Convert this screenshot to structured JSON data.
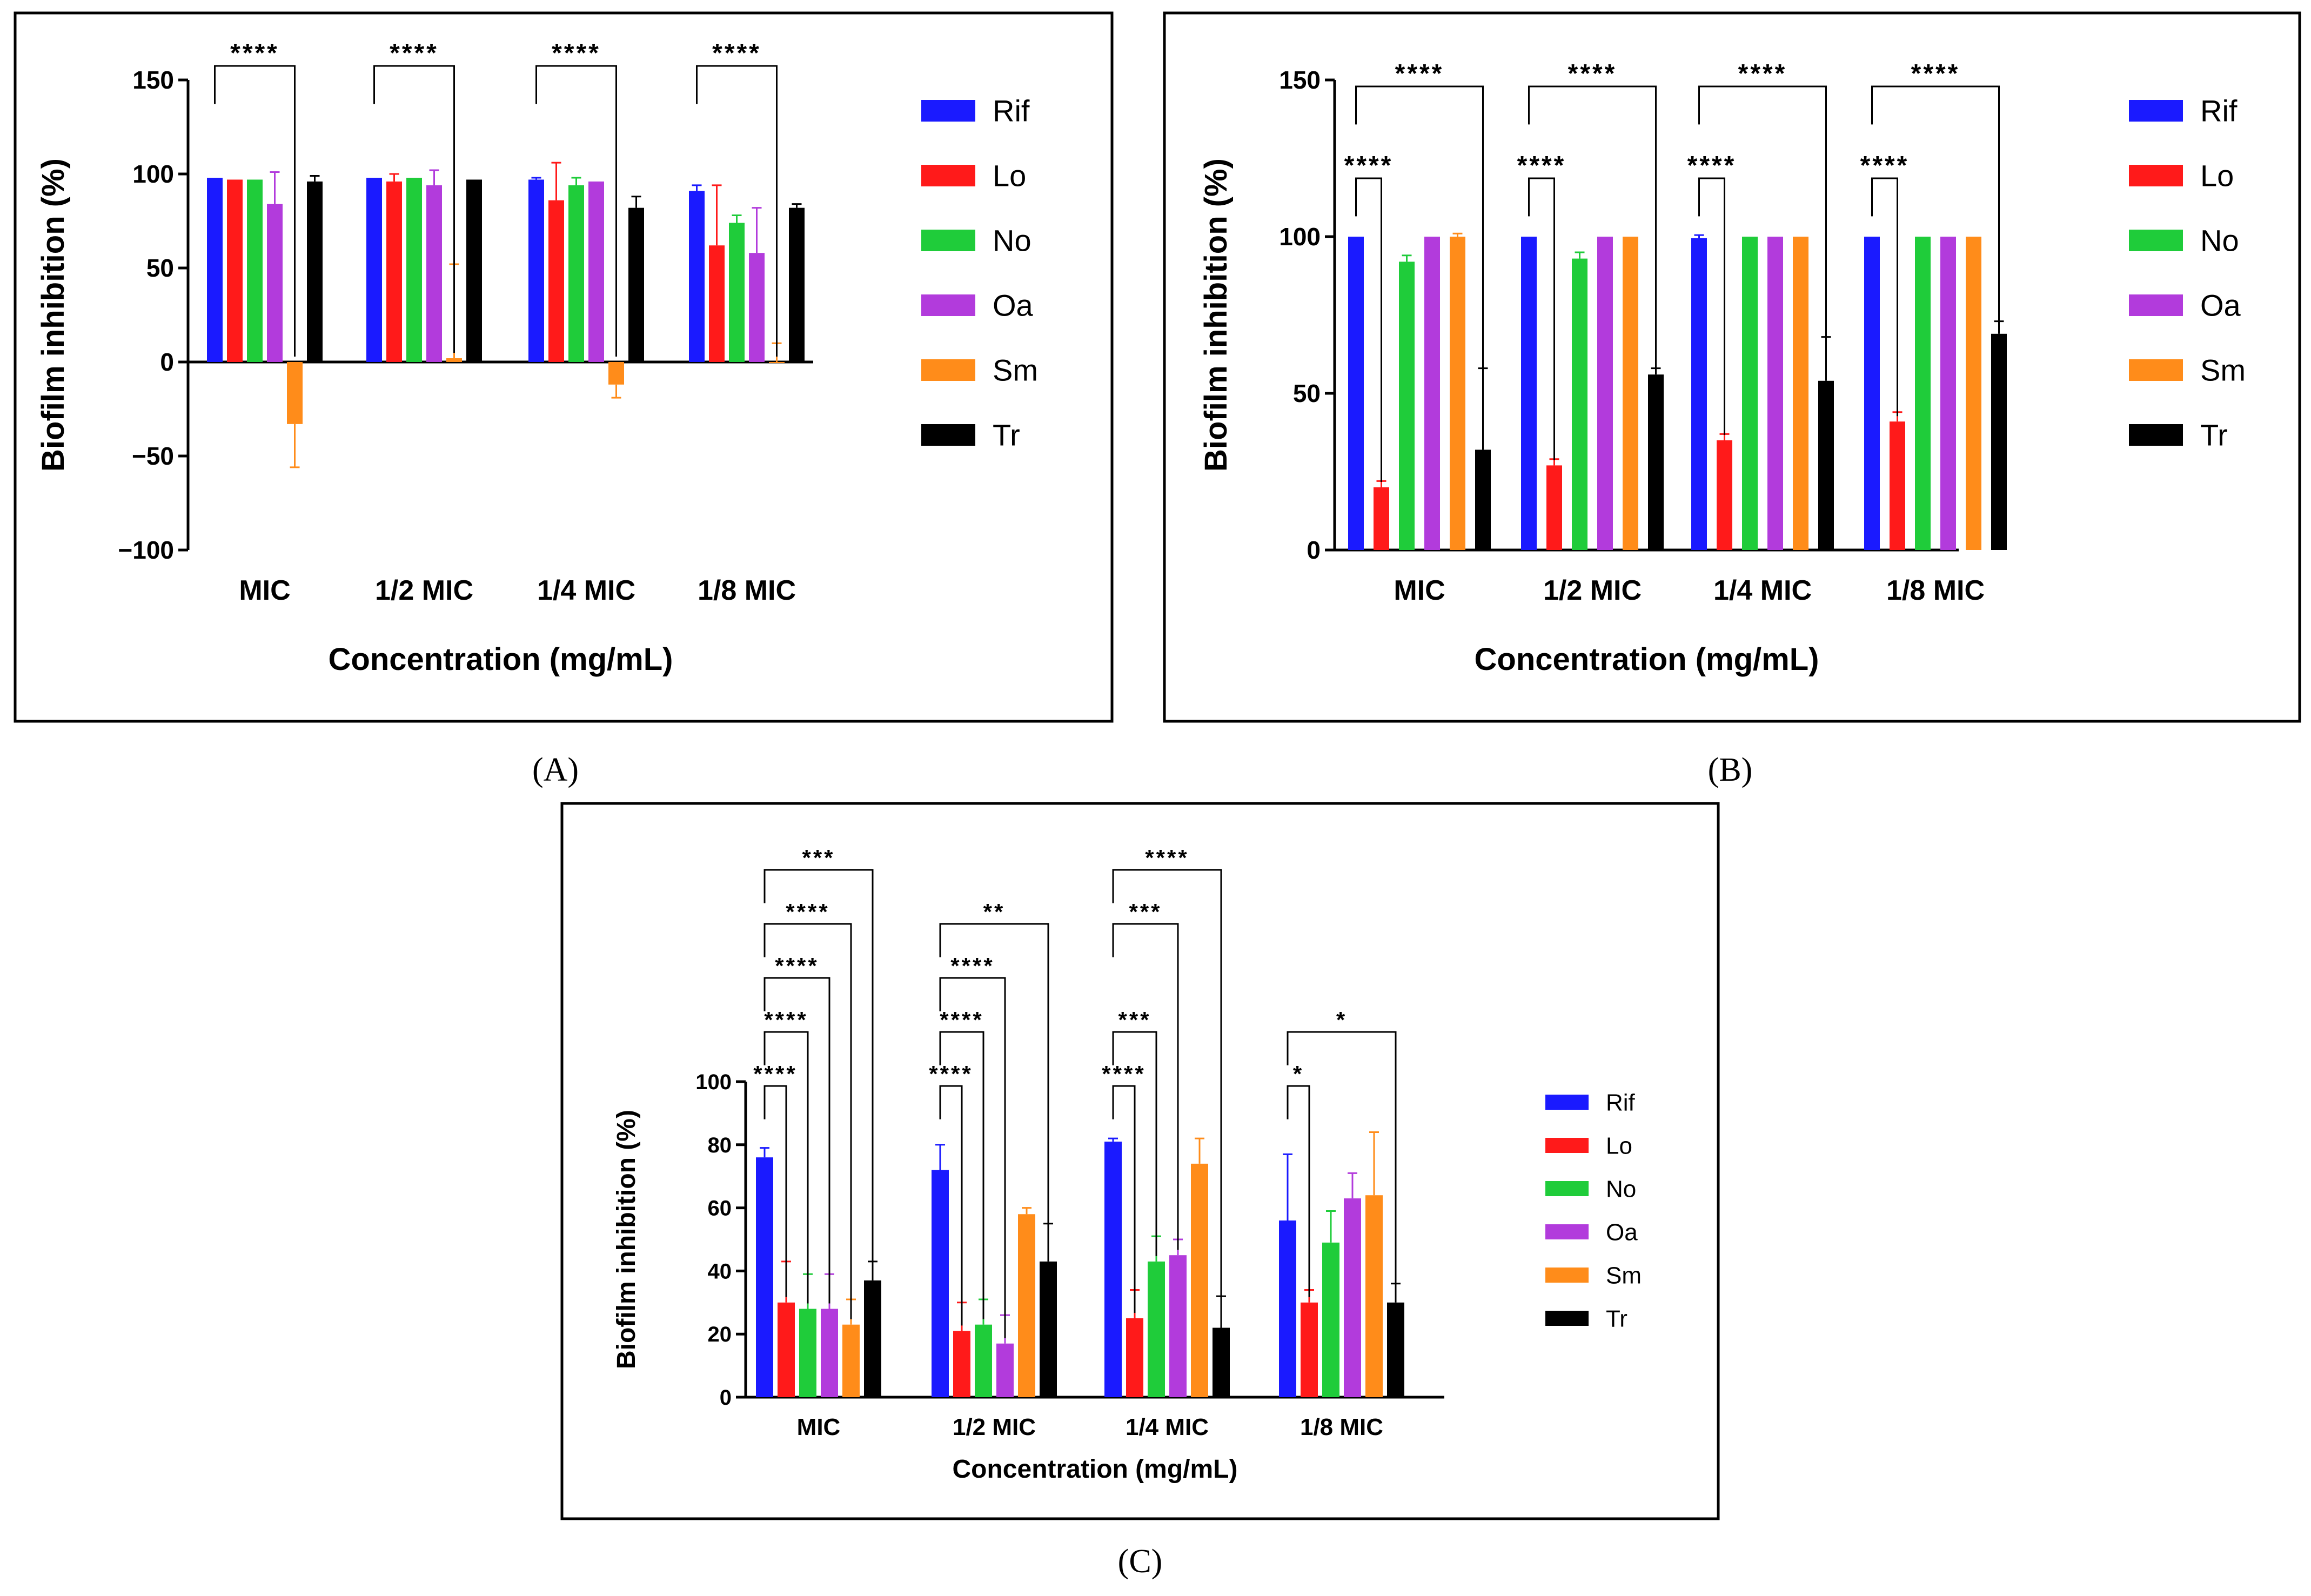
{
  "colors": {
    "Rif": "#1a1aff",
    "Lo": "#ff1a1a",
    "No": "#1fcc3a",
    "Oa": "#b23bdc",
    "Sm": "#ff8c1a",
    "Tr": "#000000"
  },
  "chart_data": [
    {
      "id": "A",
      "type": "bar",
      "panel_label": "(A)",
      "ylabel": "Biofilm inhibition (%)",
      "xlabel": "Concentration (mg/mL)",
      "ylim": [
        -100,
        150
      ],
      "yticks": [
        150,
        100,
        50,
        0,
        -50,
        -100
      ],
      "ytick_labels": [
        "150",
        "100",
        "50",
        "0",
        "−50",
        "−100"
      ],
      "categories": [
        "MIC",
        "1/2 MIC",
        "1/4 MIC",
        "1/8 MIC"
      ],
      "legend": [
        "Rif",
        "Lo",
        "No",
        "Oa",
        "Sm",
        "Tr"
      ],
      "series": [
        {
          "name": "Rif",
          "values": [
            98,
            98,
            97,
            91
          ],
          "errors": [
            0,
            0,
            1,
            3
          ]
        },
        {
          "name": "Lo",
          "values": [
            97,
            96,
            86,
            62
          ],
          "errors": [
            0,
            4,
            20,
            32
          ]
        },
        {
          "name": "No",
          "values": [
            97,
            98,
            94,
            74
          ],
          "errors": [
            0,
            0,
            4,
            4
          ]
        },
        {
          "name": "Oa",
          "values": [
            84,
            94,
            96,
            58
          ],
          "errors": [
            17,
            8,
            0,
            24
          ]
        },
        {
          "name": "Sm",
          "values": [
            -33,
            2,
            -12,
            0
          ],
          "errors": [
            23,
            50,
            7,
            10
          ]
        },
        {
          "name": "Tr",
          "values": [
            96,
            97,
            82,
            82
          ],
          "errors": [
            3,
            0,
            6,
            2
          ]
        }
      ],
      "significance": [
        {
          "cat": 0,
          "from": 0,
          "to": 4,
          "label": "****",
          "level": 0
        },
        {
          "cat": 1,
          "from": 0,
          "to": 4,
          "label": "****",
          "level": 0
        },
        {
          "cat": 2,
          "from": 0,
          "to": 4,
          "label": "****",
          "level": 0
        },
        {
          "cat": 3,
          "from": 0,
          "to": 4,
          "label": "****",
          "level": 0
        }
      ]
    },
    {
      "id": "B",
      "type": "bar",
      "panel_label": "(B)",
      "ylabel": "Biofilm inhibition (%)",
      "xlabel": "Concentration (mg/mL)",
      "ylim": [
        0,
        150
      ],
      "yticks": [
        150,
        100,
        50,
        0
      ],
      "ytick_labels": [
        "150",
        "100",
        "50",
        "0"
      ],
      "categories": [
        "MIC",
        "1/2 MIC",
        "1/4 MIC",
        "1/8 MIC"
      ],
      "legend": [
        "Rif",
        "Lo",
        "No",
        "Oa",
        "Sm",
        "Tr"
      ],
      "series": [
        {
          "name": "Rif",
          "values": [
            100,
            100,
            99.5,
            100
          ],
          "errors": [
            0,
            0,
            1,
            0
          ]
        },
        {
          "name": "Lo",
          "values": [
            20,
            27,
            35,
            41
          ],
          "errors": [
            2,
            2,
            2,
            3
          ]
        },
        {
          "name": "No",
          "values": [
            92,
            93,
            100,
            100
          ],
          "errors": [
            2,
            2,
            0,
            0
          ]
        },
        {
          "name": "Oa",
          "values": [
            100,
            100,
            100,
            100
          ],
          "errors": [
            0,
            0,
            0,
            0
          ]
        },
        {
          "name": "Sm",
          "values": [
            100,
            100,
            100,
            100
          ],
          "errors": [
            1,
            0,
            0,
            0
          ]
        },
        {
          "name": "Tr",
          "values": [
            32,
            56,
            54,
            69
          ],
          "errors": [
            26,
            2,
            14,
            4
          ]
        }
      ],
      "significance": [
        {
          "cat": 0,
          "from": 0,
          "to": 1,
          "label": "****",
          "level": 0
        },
        {
          "cat": 0,
          "from": 0,
          "to": 5,
          "label": "****",
          "level": 1
        },
        {
          "cat": 1,
          "from": 0,
          "to": 1,
          "label": "****",
          "level": 0
        },
        {
          "cat": 1,
          "from": 0,
          "to": 5,
          "label": "****",
          "level": 1
        },
        {
          "cat": 2,
          "from": 0,
          "to": 1,
          "label": "****",
          "level": 0
        },
        {
          "cat": 2,
          "from": 0,
          "to": 5,
          "label": "****",
          "level": 1
        },
        {
          "cat": 3,
          "from": 0,
          "to": 1,
          "label": "****",
          "level": 0
        },
        {
          "cat": 3,
          "from": 0,
          "to": 5,
          "label": "****",
          "level": 1
        }
      ]
    },
    {
      "id": "C",
      "type": "bar",
      "panel_label": "(C)",
      "ylabel": "Biofilm inhibition (%)",
      "xlabel": "Concentration (mg/mL)",
      "ylim": [
        0,
        100
      ],
      "yticks": [
        100,
        80,
        60,
        40,
        20,
        0
      ],
      "ytick_labels": [
        "100",
        "80",
        "60",
        "40",
        "20",
        "0"
      ],
      "categories": [
        "MIC",
        "1/2 MIC",
        "1/4 MIC",
        "1/8 MIC"
      ],
      "legend": [
        "Rif",
        "Lo",
        "No",
        "Oa",
        "Sm",
        "Tr"
      ],
      "series": [
        {
          "name": "Rif",
          "values": [
            76,
            72,
            81,
            56
          ],
          "errors": [
            3,
            8,
            1,
            21
          ]
        },
        {
          "name": "Lo",
          "values": [
            30,
            21,
            25,
            30
          ],
          "errors": [
            13,
            9,
            9,
            4
          ]
        },
        {
          "name": "No",
          "values": [
            28,
            23,
            43,
            49
          ],
          "errors": [
            11,
            8,
            8,
            10
          ]
        },
        {
          "name": "Oa",
          "values": [
            28,
            17,
            45,
            63
          ],
          "errors": [
            11,
            9,
            5,
            8
          ]
        },
        {
          "name": "Sm",
          "values": [
            23,
            58,
            74,
            64
          ],
          "errors": [
            8,
            2,
            8,
            20
          ]
        },
        {
          "name": "Tr",
          "values": [
            37,
            43,
            22,
            30
          ],
          "errors": [
            6,
            12,
            10,
            6
          ]
        }
      ],
      "significance": [
        {
          "cat": 0,
          "from": 0,
          "to": 1,
          "label": "****",
          "level": 0
        },
        {
          "cat": 0,
          "from": 0,
          "to": 2,
          "label": "****",
          "level": 1
        },
        {
          "cat": 0,
          "from": 0,
          "to": 3,
          "label": "****",
          "level": 2
        },
        {
          "cat": 0,
          "from": 0,
          "to": 4,
          "label": "****",
          "level": 3
        },
        {
          "cat": 0,
          "from": 0,
          "to": 5,
          "label": "***",
          "level": 4
        },
        {
          "cat": 1,
          "from": 0,
          "to": 1,
          "label": "****",
          "level": 0
        },
        {
          "cat": 1,
          "from": 0,
          "to": 2,
          "label": "****",
          "level": 1
        },
        {
          "cat": 1,
          "from": 0,
          "to": 3,
          "label": "****",
          "level": 2
        },
        {
          "cat": 1,
          "from": 0,
          "to": 5,
          "label": "**",
          "level": 3
        },
        {
          "cat": 2,
          "from": 0,
          "to": 1,
          "label": "****",
          "level": 0
        },
        {
          "cat": 2,
          "from": 0,
          "to": 2,
          "label": "***",
          "level": 1
        },
        {
          "cat": 2,
          "from": 0,
          "to": 3,
          "label": "***",
          "level": 3
        },
        {
          "cat": 2,
          "from": 0,
          "to": 5,
          "label": "****",
          "level": 4
        },
        {
          "cat": 3,
          "from": 0,
          "to": 1,
          "label": "*",
          "level": 0
        },
        {
          "cat": 3,
          "from": 0,
          "to": 5,
          "label": "*",
          "level": 1
        }
      ]
    }
  ]
}
